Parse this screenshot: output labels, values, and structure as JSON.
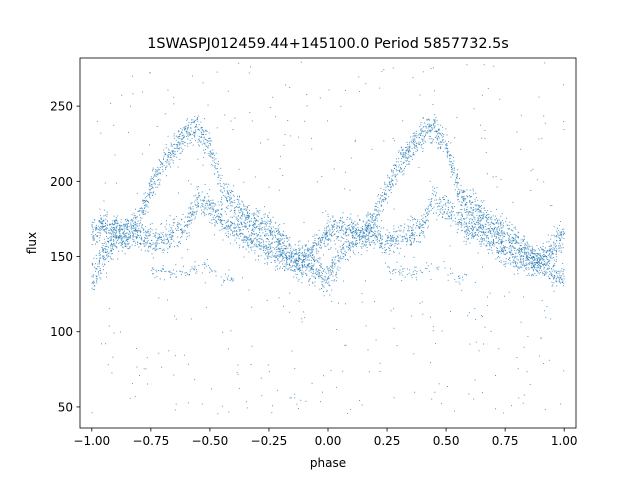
{
  "chart_data": {
    "type": "scatter",
    "title": "1SWASPJ012459.44+145100.0 Period 5857732.5s",
    "xlabel": "phase",
    "ylabel": "flux",
    "xlim": [
      -1.05,
      1.05
    ],
    "ylim": [
      36,
      282
    ],
    "xticks": [
      -1.0,
      -0.75,
      -0.5,
      -0.25,
      0.0,
      0.25,
      0.5,
      0.75,
      1.0
    ],
    "xtick_labels": [
      "−1.00",
      "−0.75",
      "−0.50",
      "−0.25",
      "0.00",
      "0.25",
      "0.50",
      "0.75",
      "1.00"
    ],
    "yticks": [
      50,
      100,
      150,
      200,
      250
    ],
    "ytick_labels": [
      "50",
      "100",
      "150",
      "200",
      "250"
    ],
    "grid": false,
    "marker_color": "#1f77b4",
    "series": [
      {
        "x": [
          -1.0,
          -0.95,
          -0.9,
          -0.85,
          -0.8,
          -0.75,
          -0.7,
          -0.65,
          -0.6,
          -0.55,
          -0.5,
          -0.45,
          -0.4,
          -0.35,
          -0.3,
          -0.25,
          -0.2,
          -0.15,
          -0.1,
          -0.05,
          0.0,
          0.05,
          0.1,
          0.15,
          0.2,
          0.25,
          0.3,
          0.35,
          0.4,
          0.45,
          0.5,
          0.55,
          0.6,
          0.65,
          0.7,
          0.75,
          0.8,
          0.85,
          0.9,
          0.95,
          1.0
        ],
        "trend_upper": [
          135,
          150,
          160,
          165,
          175,
          195,
          212,
          222,
          232,
          235,
          225,
          195,
          185,
          178,
          172,
          168,
          160,
          150,
          145,
          140,
          135,
          150,
          160,
          165,
          175,
          195,
          212,
          222,
          232,
          235,
          225,
          195,
          185,
          178,
          172,
          168,
          160,
          150,
          145,
          140,
          135
        ],
        "trend_lower": [
          165,
          170,
          168,
          165,
          165,
          160,
          162,
          165,
          170,
          188,
          182,
          175,
          168,
          165,
          160,
          155,
          150,
          145,
          150,
          155,
          165,
          170,
          168,
          165,
          165,
          160,
          162,
          165,
          170,
          188,
          182,
          175,
          168,
          165,
          160,
          155,
          150,
          145,
          150,
          155,
          165
        ],
        "trend_low_band": [
          null,
          null,
          null,
          null,
          null,
          140,
          140,
          138,
          138,
          145,
          140,
          135,
          135,
          null,
          null,
          null,
          null,
          null,
          null,
          null,
          null,
          null,
          null,
          null,
          null,
          140,
          140,
          138,
          138,
          145,
          140,
          135,
          135,
          null,
          null,
          null,
          null,
          null,
          null,
          null,
          null
        ],
        "scatter_range": [
          45,
          280
        ],
        "n_points": 6000
      }
    ]
  }
}
